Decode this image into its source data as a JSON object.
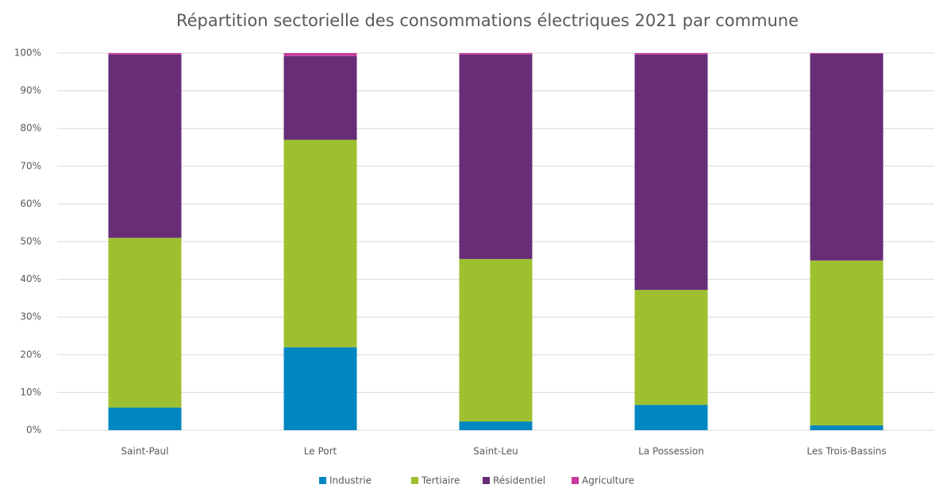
{
  "chart_data": {
    "type": "stacked_bar",
    "title": "Répartition sectorielle des consommations électriques 2021 par commune",
    "categories": [
      "Saint-Paul",
      "Le Port",
      "Saint-Leu",
      "La Possession",
      "Les Trois-Bassins"
    ],
    "series": [
      {
        "name": "Industrie",
        "color": "#0086c0",
        "values": [
          6,
          22,
          2.3,
          6.7,
          1.3
        ]
      },
      {
        "name": "Tertiaire",
        "color": "#9ec030",
        "values": [
          45,
          55,
          43.1,
          30.5,
          43.7
        ]
      },
      {
        "name": "Résidentiel",
        "color": "#672d77",
        "values": [
          48.6,
          22.2,
          54.2,
          62.4,
          54.8
        ]
      },
      {
        "name": "Agriculture",
        "color": "#c53a9c",
        "values": [
          0.4,
          0.8,
          0.4,
          0.4,
          0.2
        ]
      }
    ],
    "ylim": [
      0,
      100
    ],
    "yticks": [
      {
        "value": 0,
        "label": "0%"
      },
      {
        "value": 10,
        "label": "10%"
      },
      {
        "value": 20,
        "label": "20%"
      },
      {
        "value": 30,
        "label": "30%"
      },
      {
        "value": 40,
        "label": "40%"
      },
      {
        "value": 50,
        "label": "50%"
      },
      {
        "value": 60,
        "label": "60%"
      },
      {
        "value": 70,
        "label": "70%"
      },
      {
        "value": 80,
        "label": "80%"
      },
      {
        "value": 90,
        "label": "90%"
      },
      {
        "value": 100,
        "label": "100%"
      }
    ],
    "grid": true,
    "legend": "bottom"
  }
}
